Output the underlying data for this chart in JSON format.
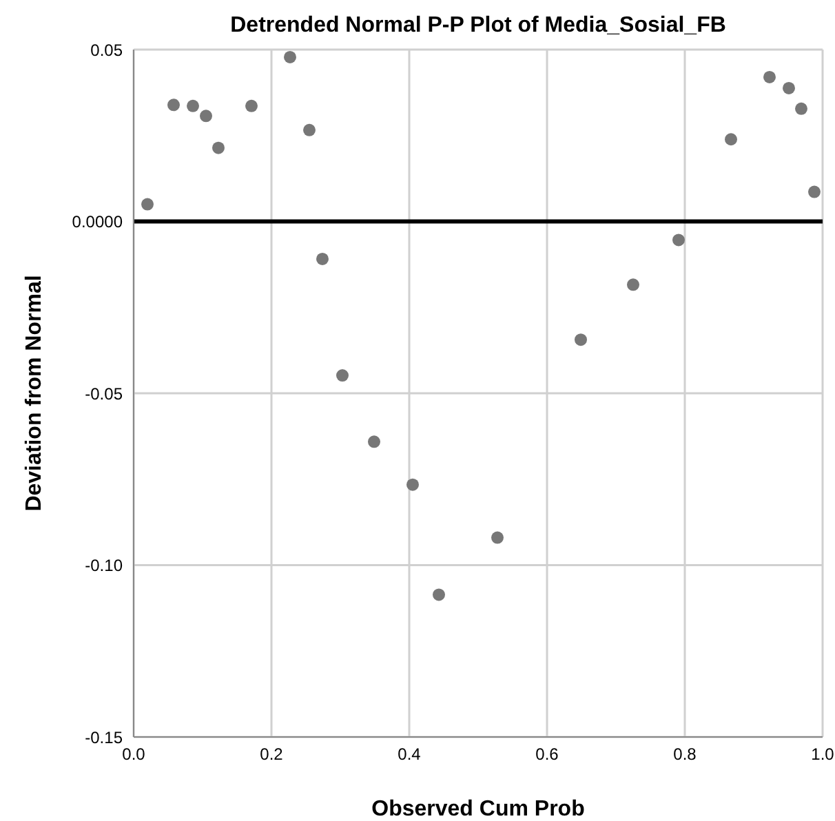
{
  "chart_data": {
    "type": "scatter",
    "title": "Detrended Normal P-P Plot of Media_Sosial_FB",
    "xlabel": "Observed Cum Prob",
    "ylabel": "Deviation from Normal",
    "x": [
      0.02,
      0.058,
      0.086,
      0.105,
      0.123,
      0.171,
      0.227,
      0.255,
      0.274,
      0.303,
      0.349,
      0.405,
      0.443,
      0.528,
      0.649,
      0.725,
      0.791,
      0.867,
      0.923,
      0.951,
      0.969,
      0.988
    ],
    "values": [
      0.005,
      0.0339,
      0.0336,
      0.0307,
      0.0214,
      0.0336,
      0.0478,
      0.0266,
      -0.0109,
      -0.0448,
      -0.0641,
      -0.0766,
      -0.1086,
      -0.092,
      -0.0344,
      -0.0184,
      -0.0054,
      0.0239,
      0.042,
      0.0388,
      0.0328,
      0.0086
    ],
    "color": "#777777",
    "marker": "circle",
    "xlim": [
      0,
      1
    ],
    "ylim": [
      -0.15,
      0.05
    ],
    "xticks": [
      {
        "value": 0,
        "label": "0.0"
      },
      0.2,
      0.4,
      0.6,
      0.8,
      {
        "value": 1,
        "label": "1.0"
      }
    ],
    "yticks": [
      -0.15,
      {
        "value": -0.1,
        "label": "-0.10"
      },
      -0.05,
      {
        "value": 0,
        "label": "0.0000"
      },
      0.05
    ],
    "ref_lines": [
      {
        "axis": "y",
        "value": 0,
        "color": "#000000"
      }
    ],
    "grid": true
  }
}
